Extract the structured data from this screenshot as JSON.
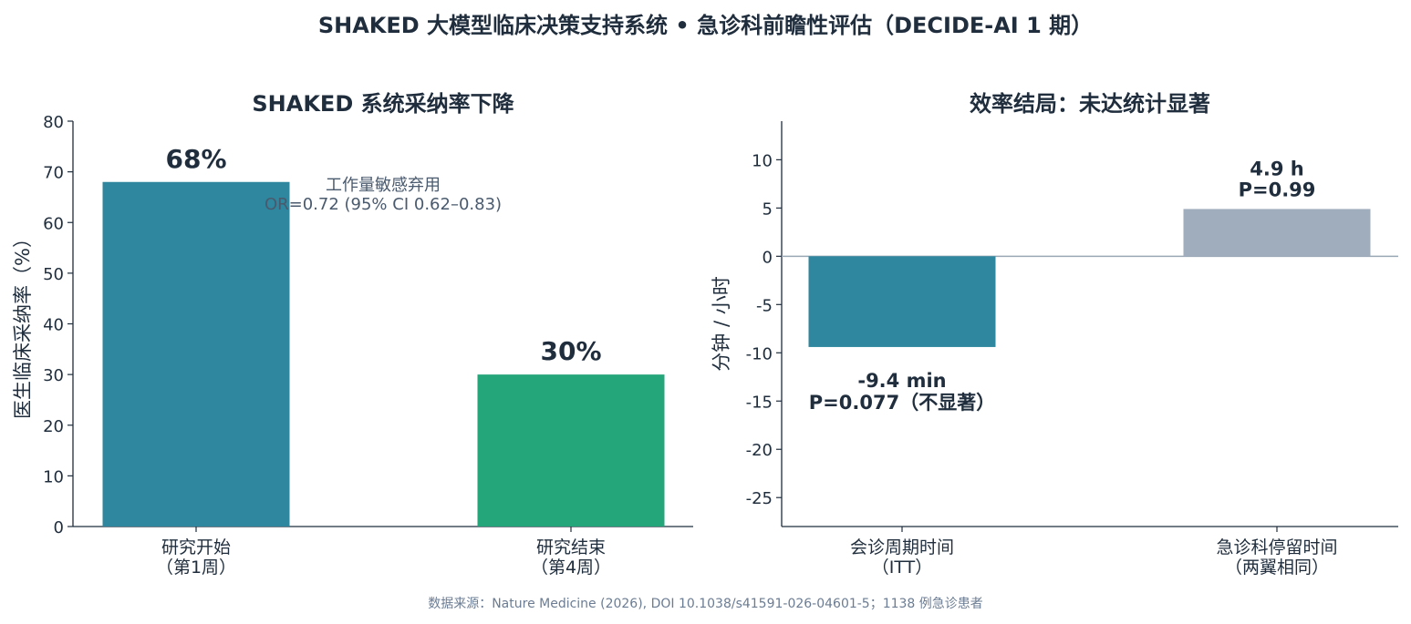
{
  "suptitle": "SHAKED 大模型临床决策支持系统 • 急诊科前瞻性评估（DECIDE-AI 1 期）",
  "source": "数据来源：Nature Medicine (2026), DOI 10.1038/s41591-026-04601-5；1138 例急诊患者",
  "colors": {
    "text": "#1f2d3d",
    "muted": "#4a5a6e",
    "teal": "#2e879e",
    "green": "#25a67a",
    "gray": "#a0adbd",
    "zero_line": "#9aa7b5"
  },
  "chart_data": [
    {
      "type": "bar",
      "title": "SHAKED 系统采纳率下降",
      "ylabel": "医生临床采纳率（%）",
      "xlabel": "",
      "ylim": [
        0,
        80
      ],
      "yticks": [
        0,
        10,
        20,
        30,
        40,
        50,
        60,
        70,
        80
      ],
      "categories": [
        [
          "研究开始",
          "（第1周）"
        ],
        [
          "研究结束",
          "（第4周）"
        ]
      ],
      "values": [
        68,
        30
      ],
      "value_labels": [
        "68%",
        "30%"
      ],
      "bar_colors": [
        "#2e879e",
        "#25a67a"
      ],
      "annotation": [
        "工作量敏感弃用",
        "OR=0.72 (95% CI 0.62–0.83)"
      ],
      "grid": false
    },
    {
      "type": "bar",
      "title": "效率结局：未达统计显著",
      "ylabel": "分钟 / 小时",
      "xlabel": "",
      "ylim": [
        -28,
        14
      ],
      "yticks": [
        -25,
        -20,
        -15,
        -10,
        -5,
        0,
        5,
        10
      ],
      "categories": [
        [
          "会诊周期时间",
          "（ITT）"
        ],
        [
          "急诊科停留时间",
          "（两翼相同）"
        ]
      ],
      "values": [
        -9.4,
        4.9
      ],
      "value_labels": [
        [
          "-9.4 min",
          "P=0.077（不显著）"
        ],
        [
          "4.9 h",
          "P=0.99"
        ]
      ],
      "bar_colors": [
        "#2e879e",
        "#a0adbd"
      ],
      "zero_line": true,
      "grid": false
    }
  ]
}
